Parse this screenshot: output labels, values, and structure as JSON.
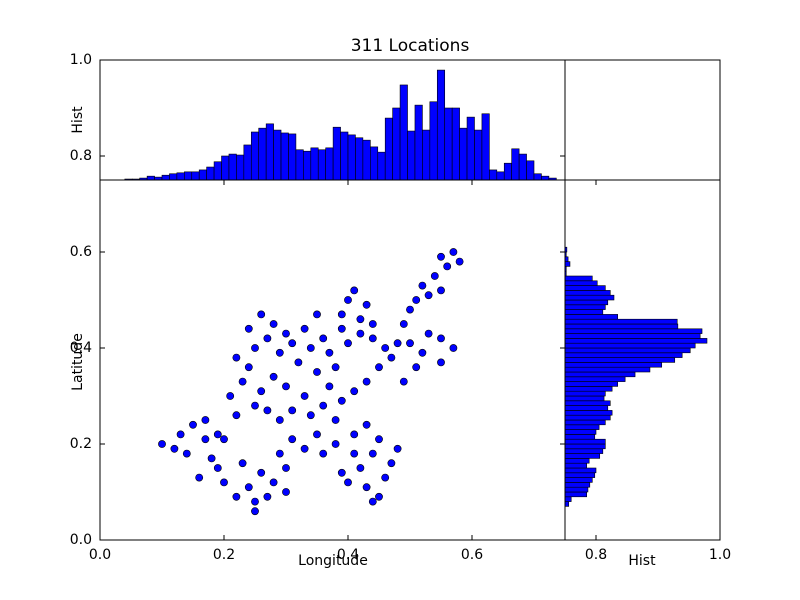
{
  "chart_data": [
    {
      "type": "scatter",
      "xlabel": "Longitude",
      "ylabel": "Latitude",
      "color": "#0000ff",
      "x": [
        0.1,
        0.12,
        0.13,
        0.15,
        0.14,
        0.17,
        0.19,
        0.18,
        0.2,
        0.22,
        0.21,
        0.23,
        0.22,
        0.24,
        0.25,
        0.24,
        0.26,
        0.28,
        0.27,
        0.29,
        0.3,
        0.31,
        0.33,
        0.32,
        0.34,
        0.36,
        0.37,
        0.35,
        0.38,
        0.4,
        0.42,
        0.44,
        0.46,
        0.48,
        0.47,
        0.45,
        0.43,
        0.41,
        0.39,
        0.37,
        0.33,
        0.3,
        0.28,
        0.26,
        0.25,
        0.27,
        0.29,
        0.31,
        0.34,
        0.36,
        0.38,
        0.35,
        0.33,
        0.31,
        0.29,
        0.3,
        0.28,
        0.26,
        0.24,
        0.22,
        0.2,
        0.19,
        0.23,
        0.25,
        0.25,
        0.27,
        0.3,
        0.16,
        0.17,
        0.39,
        0.4,
        0.41,
        0.39,
        0.42,
        0.43,
        0.35,
        0.44,
        0.41,
        0.43,
        0.45,
        0.44,
        0.42,
        0.4,
        0.43,
        0.45,
        0.44,
        0.46,
        0.47,
        0.48,
        0.41,
        0.39,
        0.49,
        0.5,
        0.51,
        0.53,
        0.55,
        0.54,
        0.56,
        0.57,
        0.58,
        0.55,
        0.52,
        0.5,
        0.53,
        0.55,
        0.57,
        0.55,
        0.52,
        0.51,
        0.49,
        0.36,
        0.38
      ],
      "y": [
        0.2,
        0.19,
        0.22,
        0.24,
        0.18,
        0.25,
        0.22,
        0.17,
        0.21,
        0.26,
        0.3,
        0.33,
        0.38,
        0.36,
        0.4,
        0.44,
        0.47,
        0.45,
        0.42,
        0.39,
        0.43,
        0.41,
        0.44,
        0.37,
        0.4,
        0.42,
        0.39,
        0.35,
        0.36,
        0.41,
        0.43,
        0.42,
        0.4,
        0.41,
        0.38,
        0.36,
        0.33,
        0.31,
        0.29,
        0.32,
        0.3,
        0.32,
        0.34,
        0.31,
        0.28,
        0.27,
        0.25,
        0.27,
        0.26,
        0.28,
        0.25,
        0.22,
        0.19,
        0.21,
        0.18,
        0.15,
        0.12,
        0.14,
        0.11,
        0.09,
        0.12,
        0.15,
        0.16,
        0.08,
        0.06,
        0.09,
        0.1,
        0.13,
        0.21,
        0.47,
        0.5,
        0.52,
        0.44,
        0.46,
        0.49,
        0.47,
        0.45,
        0.22,
        0.24,
        0.21,
        0.18,
        0.15,
        0.12,
        0.11,
        0.09,
        0.08,
        0.13,
        0.16,
        0.19,
        0.18,
        0.14,
        0.45,
        0.48,
        0.5,
        0.51,
        0.52,
        0.55,
        0.57,
        0.6,
        0.58,
        0.59,
        0.53,
        0.41,
        0.43,
        0.42,
        0.4,
        0.37,
        0.39,
        0.36,
        0.33,
        0.18,
        0.2
      ],
      "xlim": [
        0,
        0.75
      ],
      "ylim": [
        0,
        0.75
      ],
      "xticks": [
        {
          "value": 0,
          "label": "0.0"
        },
        0.2,
        0.4,
        0.6
      ],
      "yticks": [
        {
          "value": 0,
          "label": "0.0"
        },
        0.2,
        0.4,
        0.6
      ]
    },
    {
      "type": "histogram",
      "title": "311 Locations",
      "ylabel": "Hist",
      "color": "#0000ff",
      "bins": [
        0.04,
        0.052,
        0.064,
        0.076,
        0.088,
        0.1,
        0.112,
        0.124,
        0.136,
        0.148,
        0.16,
        0.172,
        0.184,
        0.196,
        0.208,
        0.22,
        0.232,
        0.244,
        0.256,
        0.268,
        0.28,
        0.292,
        0.304,
        0.316,
        0.328,
        0.34,
        0.352,
        0.364,
        0.376,
        0.388,
        0.4,
        0.412,
        0.424,
        0.436,
        0.448,
        0.46,
        0.472,
        0.484,
        0.496,
        0.508,
        0.52,
        0.532,
        0.544,
        0.556,
        0.568,
        0.58,
        0.592,
        0.604,
        0.616,
        0.628,
        0.64,
        0.652,
        0.664,
        0.676,
        0.688,
        0.7,
        0.712,
        0.724,
        0.736
      ],
      "values": [
        0.752,
        0.752,
        0.754,
        0.758,
        0.756,
        0.76,
        0.763,
        0.765,
        0.767,
        0.767,
        0.771,
        0.777,
        0.788,
        0.8,
        0.804,
        0.802,
        0.823,
        0.85,
        0.858,
        0.867,
        0.854,
        0.848,
        0.846,
        0.813,
        0.81,
        0.817,
        0.813,
        0.817,
        0.86,
        0.85,
        0.844,
        0.838,
        0.833,
        0.819,
        0.808,
        0.879,
        0.9,
        0.948,
        0.852,
        0.906,
        0.854,
        0.913,
        0.979,
        0.9,
        0.9,
        0.858,
        0.881,
        0.854,
        0.888,
        0.771,
        0.767,
        0.785,
        0.815,
        0.804,
        0.79,
        0.763,
        0.758,
        0.754
      ],
      "xlim": [
        0,
        0.75
      ],
      "ylim": [
        0.75,
        1.0
      ],
      "yticks": [
        0.8,
        {
          "value": 1,
          "label": "1.0"
        }
      ]
    },
    {
      "type": "histogram",
      "orientation": "horizontal",
      "xlabel": "Hist",
      "color": "#0000ff",
      "bins": [
        0.07,
        0.08,
        0.09,
        0.1,
        0.11,
        0.12,
        0.13,
        0.14,
        0.15,
        0.16,
        0.17,
        0.18,
        0.19,
        0.2,
        0.21,
        0.22,
        0.23,
        0.24,
        0.25,
        0.26,
        0.27,
        0.28,
        0.29,
        0.3,
        0.31,
        0.32,
        0.33,
        0.34,
        0.35,
        0.36,
        0.37,
        0.38,
        0.39,
        0.4,
        0.41,
        0.42,
        0.43,
        0.44,
        0.45,
        0.46,
        0.47,
        0.48,
        0.49,
        0.5,
        0.51,
        0.52,
        0.53,
        0.54,
        0.55,
        0.56,
        0.57,
        0.58,
        0.59,
        0.6,
        0.61
      ],
      "values": [
        0.756,
        0.76,
        0.785,
        0.787,
        0.79,
        0.794,
        0.798,
        0.8,
        0.785,
        0.789,
        0.806,
        0.811,
        0.815,
        0.815,
        0.798,
        0.8,
        0.805,
        0.815,
        0.823,
        0.826,
        0.819,
        0.823,
        0.813,
        0.815,
        0.826,
        0.835,
        0.847,
        0.863,
        0.887,
        0.906,
        0.927,
        0.939,
        0.952,
        0.96,
        0.979,
        0.968,
        0.971,
        0.932,
        0.931,
        0.835,
        0.811,
        0.815,
        0.819,
        0.829,
        0.823,
        0.815,
        0.802,
        0.794,
        0.752,
        0.752,
        0.758,
        0.755,
        0.752,
        0.753
      ],
      "xlim": [
        0.75,
        1.0
      ],
      "ylim": [
        0,
        0.75
      ],
      "xticks": [
        0.8,
        {
          "value": 1,
          "label": "1.0"
        }
      ]
    }
  ]
}
